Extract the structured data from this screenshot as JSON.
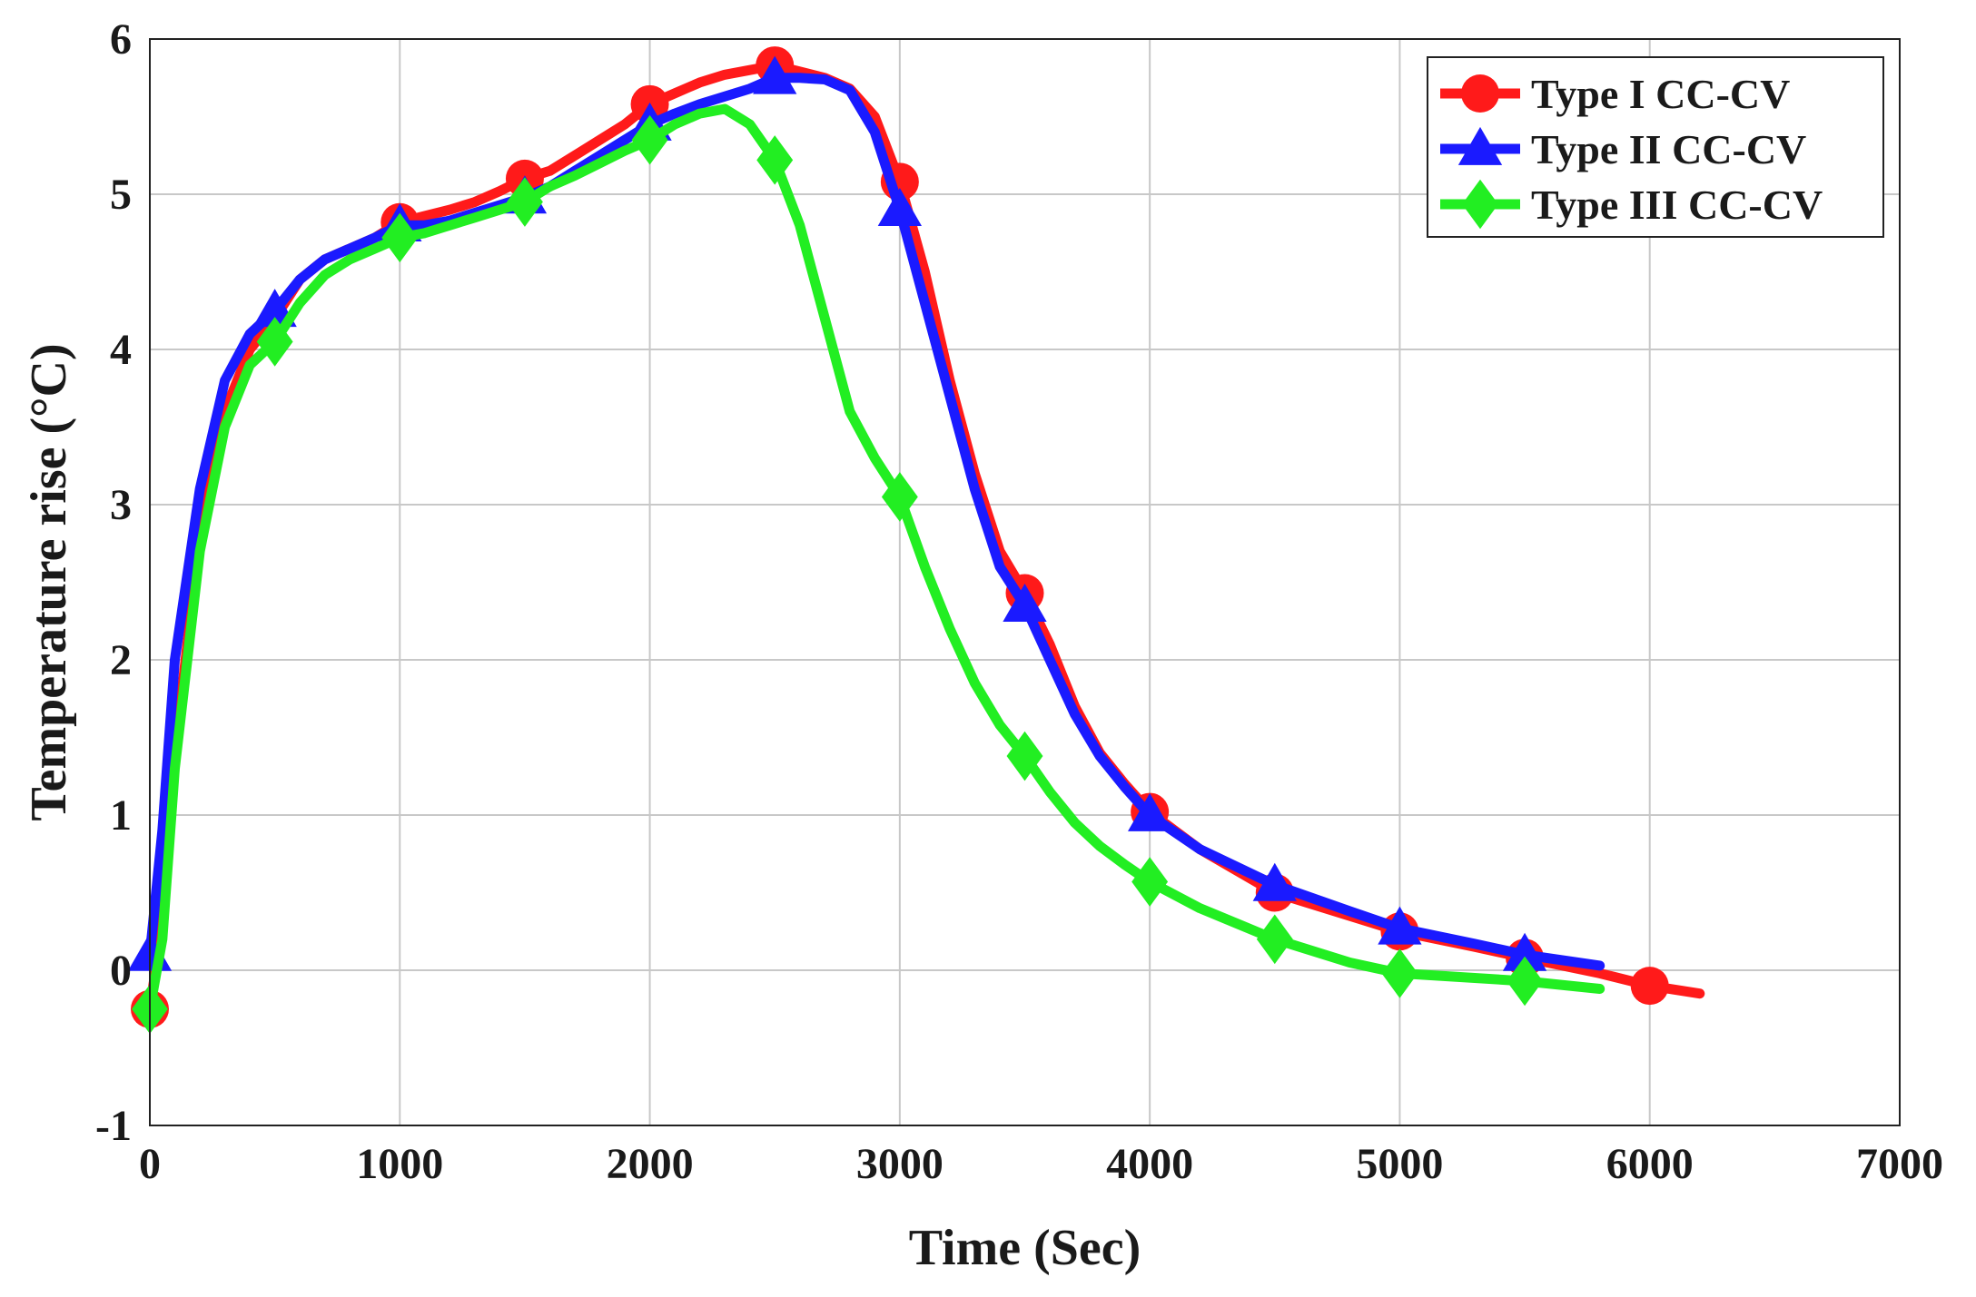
{
  "chart_data": {
    "type": "line",
    "xlabel": "Time (Sec)",
    "ylabel": "Temperature rise (°C)",
    "xlim": [
      0,
      7000
    ],
    "ylim": [
      -1,
      6
    ],
    "xticks": [
      0,
      1000,
      2000,
      3000,
      4000,
      5000,
      6000,
      7000
    ],
    "yticks": [
      -1,
      0,
      1,
      2,
      3,
      4,
      5,
      6
    ],
    "grid": true,
    "legend_position": "top-right",
    "series": [
      {
        "name": "Type I CC-CV",
        "color": "#ff1a1a",
        "marker": "circle",
        "x": [
          0,
          50,
          100,
          200,
          300,
          400,
          500,
          600,
          700,
          800,
          900,
          1000,
          1100,
          1200,
          1300,
          1400,
          1500,
          1600,
          1700,
          1800,
          1900,
          2000,
          2100,
          2200,
          2300,
          2400,
          2500,
          2600,
          2700,
          2800,
          2900,
          3000,
          3100,
          3200,
          3300,
          3400,
          3500,
          3600,
          3700,
          3800,
          3900,
          4000,
          4200,
          4500,
          4800,
          5000,
          5300,
          5500,
          5800,
          6000,
          6200
        ],
        "y": [
          -0.25,
          0.3,
          1.4,
          2.8,
          3.6,
          4.0,
          4.2,
          4.45,
          4.58,
          4.65,
          4.72,
          4.82,
          4.86,
          4.9,
          4.95,
          5.02,
          5.1,
          5.15,
          5.25,
          5.35,
          5.45,
          5.58,
          5.65,
          5.72,
          5.77,
          5.8,
          5.83,
          5.79,
          5.75,
          5.68,
          5.5,
          5.08,
          4.5,
          3.8,
          3.2,
          2.7,
          2.43,
          2.1,
          1.7,
          1.4,
          1.2,
          1.02,
          0.78,
          0.5,
          0.35,
          0.25,
          0.15,
          0.08,
          -0.02,
          -0.1,
          -0.15
        ],
        "marker_x": [
          0,
          1000,
          1500,
          2000,
          2500,
          3000,
          3500,
          4000,
          4500,
          5000,
          5500,
          6000
        ],
        "marker_y": [
          -0.25,
          4.82,
          5.1,
          5.58,
          5.83,
          5.08,
          2.43,
          1.02,
          0.5,
          0.25,
          0.08,
          -0.1
        ]
      },
      {
        "name": "Type II CC-CV",
        "color": "#1a1aff",
        "marker": "triangle",
        "x": [
          0,
          50,
          100,
          200,
          300,
          400,
          500,
          600,
          700,
          800,
          900,
          1000,
          1100,
          1200,
          1300,
          1400,
          1500,
          1600,
          1700,
          1800,
          1900,
          2000,
          2100,
          2200,
          2300,
          2400,
          2500,
          2600,
          2700,
          2800,
          2900,
          3000,
          3100,
          3200,
          3300,
          3400,
          3500,
          3600,
          3700,
          3800,
          3900,
          4000,
          4200,
          4500,
          4800,
          5000,
          5300,
          5500,
          5800
        ],
        "y": [
          0.1,
          0.9,
          2.0,
          3.1,
          3.8,
          4.1,
          4.25,
          4.45,
          4.58,
          4.65,
          4.72,
          4.8,
          4.8,
          4.83,
          4.88,
          4.93,
          4.98,
          5.05,
          5.15,
          5.25,
          5.35,
          5.45,
          5.52,
          5.58,
          5.63,
          5.68,
          5.75,
          5.75,
          5.74,
          5.67,
          5.4,
          4.9,
          4.3,
          3.7,
          3.1,
          2.6,
          2.35,
          2.0,
          1.65,
          1.38,
          1.18,
          1.0,
          0.78,
          0.55,
          0.38,
          0.27,
          0.17,
          0.1,
          0.03
        ],
        "marker_x": [
          0,
          500,
          1000,
          1500,
          2000,
          2500,
          3000,
          3500,
          4000,
          4500,
          5000,
          5500
        ],
        "marker_y": [
          0.1,
          4.25,
          4.8,
          4.98,
          5.45,
          5.75,
          4.9,
          2.35,
          1.0,
          0.55,
          0.27,
          0.1
        ]
      },
      {
        "name": "Type III CC-CV",
        "color": "#22ee22",
        "marker": "diamond",
        "x": [
          0,
          50,
          100,
          200,
          300,
          400,
          500,
          600,
          700,
          800,
          900,
          1000,
          1100,
          1200,
          1300,
          1400,
          1500,
          1600,
          1700,
          1800,
          1900,
          2000,
          2100,
          2200,
          2300,
          2400,
          2500,
          2600,
          2700,
          2800,
          2900,
          3000,
          3100,
          3200,
          3300,
          3400,
          3500,
          3600,
          3700,
          3800,
          3900,
          4000,
          4200,
          4500,
          4800,
          5000,
          5300,
          5500,
          5800
        ],
        "y": [
          -0.25,
          0.2,
          1.3,
          2.7,
          3.5,
          3.9,
          4.05,
          4.3,
          4.48,
          4.58,
          4.65,
          4.72,
          4.75,
          4.8,
          4.85,
          4.9,
          4.95,
          5.05,
          5.12,
          5.2,
          5.28,
          5.35,
          5.45,
          5.52,
          5.55,
          5.45,
          5.22,
          4.8,
          4.2,
          3.6,
          3.3,
          3.05,
          2.6,
          2.2,
          1.85,
          1.58,
          1.38,
          1.15,
          0.95,
          0.8,
          0.68,
          0.57,
          0.4,
          0.2,
          0.05,
          -0.02,
          -0.05,
          -0.07,
          -0.12
        ],
        "marker_x": [
          0,
          500,
          1000,
          1500,
          2000,
          2500,
          3000,
          3500,
          4000,
          4500,
          5000,
          5500
        ],
        "marker_y": [
          -0.25,
          4.05,
          4.72,
          4.95,
          5.35,
          5.22,
          3.05,
          1.38,
          0.57,
          0.2,
          -0.02,
          -0.07
        ]
      }
    ]
  }
}
